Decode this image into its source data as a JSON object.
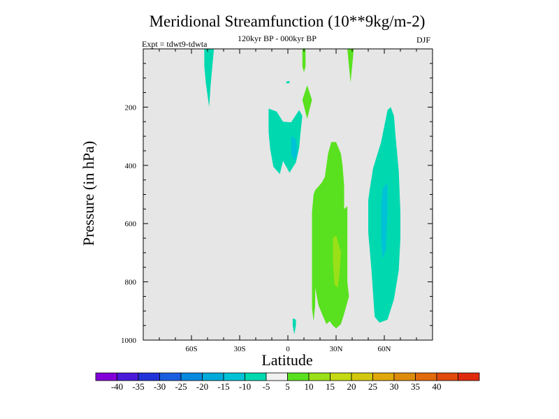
{
  "chart_data": {
    "type": "contour",
    "title": "Meridional Streamfunction (10**9kg/m-2)",
    "subtitle": "120kyr BP - 000kyr BP",
    "left_label": "Expt = tdwt9-tdwta",
    "right_label": "DJF",
    "xlabel": "Latitude",
    "ylabel": "Pressure (in hPa)",
    "xlim": [
      -90,
      90
    ],
    "ylim": [
      0,
      1000
    ],
    "y_inverted": true,
    "x_ticks": [
      {
        "value": -60,
        "label": "60S"
      },
      {
        "value": -30,
        "label": "30S"
      },
      {
        "value": 0,
        "label": "0"
      },
      {
        "value": 30,
        "label": "30N"
      },
      {
        "value": 60,
        "label": "60N"
      }
    ],
    "y_ticks": [
      {
        "value": 200,
        "label": "200"
      },
      {
        "value": 400,
        "label": "400"
      },
      {
        "value": 600,
        "label": "600"
      },
      {
        "value": 800,
        "label": "800"
      },
      {
        "value": 1000,
        "label": "1000"
      }
    ],
    "background_color": "#e6e6e6",
    "regions": [
      {
        "name": "cell-50S-upper",
        "level": -10,
        "color": "#00d9b0",
        "points": [
          [
            -52,
            0
          ],
          [
            -46,
            0
          ],
          [
            -47,
            60
          ],
          [
            -48,
            120
          ],
          [
            -49,
            200
          ],
          [
            -51,
            120
          ],
          [
            -52,
            60
          ]
        ]
      },
      {
        "name": "cell-0-small",
        "level": -10,
        "color": "#00d9b0",
        "points": [
          [
            -1,
            112
          ],
          [
            1,
            110
          ],
          [
            1,
            118
          ],
          [
            -1,
            118
          ]
        ]
      },
      {
        "name": "cell-5S-main",
        "level": -10,
        "color": "#00d9b0",
        "points": [
          [
            -12,
            205
          ],
          [
            -7,
            215
          ],
          [
            -3,
            250
          ],
          [
            2,
            252
          ],
          [
            7,
            210
          ],
          [
            9,
            230
          ],
          [
            8,
            280
          ],
          [
            7,
            340
          ],
          [
            5,
            390
          ],
          [
            1,
            425
          ],
          [
            -3,
            385
          ],
          [
            -5,
            430
          ],
          [
            -9,
            405
          ],
          [
            -11,
            345
          ],
          [
            -12,
            285
          ]
        ]
      },
      {
        "name": "cell-5S-core",
        "level": -15,
        "color": "#00c2d6",
        "points": [
          [
            2,
            300
          ],
          [
            5,
            310
          ],
          [
            6,
            360
          ],
          [
            4,
            385
          ],
          [
            2,
            360
          ]
        ]
      },
      {
        "name": "cell-2N-small",
        "level": -10,
        "color": "#00d9b0",
        "points": [
          [
            3,
            925
          ],
          [
            5,
            930
          ],
          [
            5,
            950
          ],
          [
            4,
            980
          ],
          [
            3,
            950
          ]
        ]
      },
      {
        "name": "cell-55N",
        "level": -10,
        "color": "#00d9b0",
        "points": [
          [
            53,
            410
          ],
          [
            58,
            320
          ],
          [
            62,
            210
          ],
          [
            64,
            200
          ],
          [
            66,
            230
          ],
          [
            67,
            300
          ],
          [
            69,
            420
          ],
          [
            70,
            560
          ],
          [
            70,
            650
          ],
          [
            69,
            760
          ],
          [
            66,
            860
          ],
          [
            62,
            930
          ],
          [
            57,
            940
          ],
          [
            54,
            920
          ],
          [
            52,
            760
          ],
          [
            50,
            630
          ],
          [
            50,
            520
          ],
          [
            51,
            480
          ]
        ]
      },
      {
        "name": "cell-55N-core",
        "level": -15,
        "color": "#00c2d6",
        "points": [
          [
            59,
            480
          ],
          [
            62,
            460
          ],
          [
            62,
            560
          ],
          [
            61,
            690
          ],
          [
            59,
            720
          ],
          [
            58,
            650
          ],
          [
            58,
            540
          ]
        ]
      },
      {
        "name": "cell-5N-top",
        "level": 5,
        "color": "#59e11f",
        "points": [
          [
            9,
            0
          ],
          [
            11,
            0
          ],
          [
            11,
            60
          ],
          [
            10,
            80
          ],
          [
            9,
            60
          ]
        ]
      },
      {
        "name": "cell-5N-diamond",
        "level": 5,
        "color": "#59e11f",
        "points": [
          [
            9,
            175
          ],
          [
            12,
            125
          ],
          [
            15,
            175
          ],
          [
            12,
            240
          ]
        ]
      },
      {
        "name": "cell-35N-top",
        "level": 5,
        "color": "#59e11f",
        "points": [
          [
            37,
            0
          ],
          [
            41,
            0
          ],
          [
            40,
            60
          ],
          [
            39,
            115
          ],
          [
            38,
            60
          ]
        ]
      },
      {
        "name": "cell-25N-main",
        "level": 5,
        "color": "#59e11f",
        "points": [
          [
            17,
            485
          ],
          [
            21,
            460
          ],
          [
            23,
            440
          ],
          [
            25,
            360
          ],
          [
            27,
            320
          ],
          [
            30,
            320
          ],
          [
            33,
            360
          ],
          [
            34,
            400
          ],
          [
            35,
            470
          ],
          [
            35,
            550
          ],
          [
            37,
            540
          ],
          [
            37,
            800
          ],
          [
            38,
            850
          ],
          [
            35,
            910
          ],
          [
            33,
            945
          ],
          [
            30,
            960
          ],
          [
            28,
            950
          ],
          [
            26,
            935
          ],
          [
            24,
            945
          ],
          [
            22,
            920
          ],
          [
            19,
            880
          ],
          [
            17,
            820
          ],
          [
            15,
            830
          ],
          [
            15,
            780
          ],
          [
            15,
            560
          ],
          [
            16,
            500
          ]
        ]
      },
      {
        "name": "cell-30N-core",
        "level": 10,
        "color": "#9ae018",
        "points": [
          [
            28,
            650
          ],
          [
            30,
            640
          ],
          [
            33,
            700
          ],
          [
            32,
            780
          ],
          [
            31,
            820
          ],
          [
            29,
            810
          ],
          [
            28,
            730
          ]
        ]
      },
      {
        "name": "cell-12N-strand",
        "level": 5,
        "color": "#59e11f",
        "points": [
          [
            15,
            820
          ],
          [
            17,
            800
          ],
          [
            17,
            880
          ],
          [
            16,
            935
          ],
          [
            15,
            890
          ]
        ]
      }
    ],
    "colorbar": {
      "colors": [
        "#8300d9",
        "#4b1ad9",
        "#2233d9",
        "#1a5ee0",
        "#0789e0",
        "#00aad9",
        "#00c2d6",
        "#00d9b0",
        "#f0f0f0",
        "#59e11f",
        "#9ae018",
        "#c4da14",
        "#d4c80f",
        "#e0a80b",
        "#dd8c0a",
        "#e26a0a",
        "#e04a0c",
        "#df2a0e"
      ],
      "labels": [
        "-40",
        "-35",
        "-30",
        "-25",
        "-20",
        "-15",
        "-10",
        "-5",
        "5",
        "10",
        "15",
        "20",
        "25",
        "30",
        "35",
        "40"
      ]
    }
  }
}
